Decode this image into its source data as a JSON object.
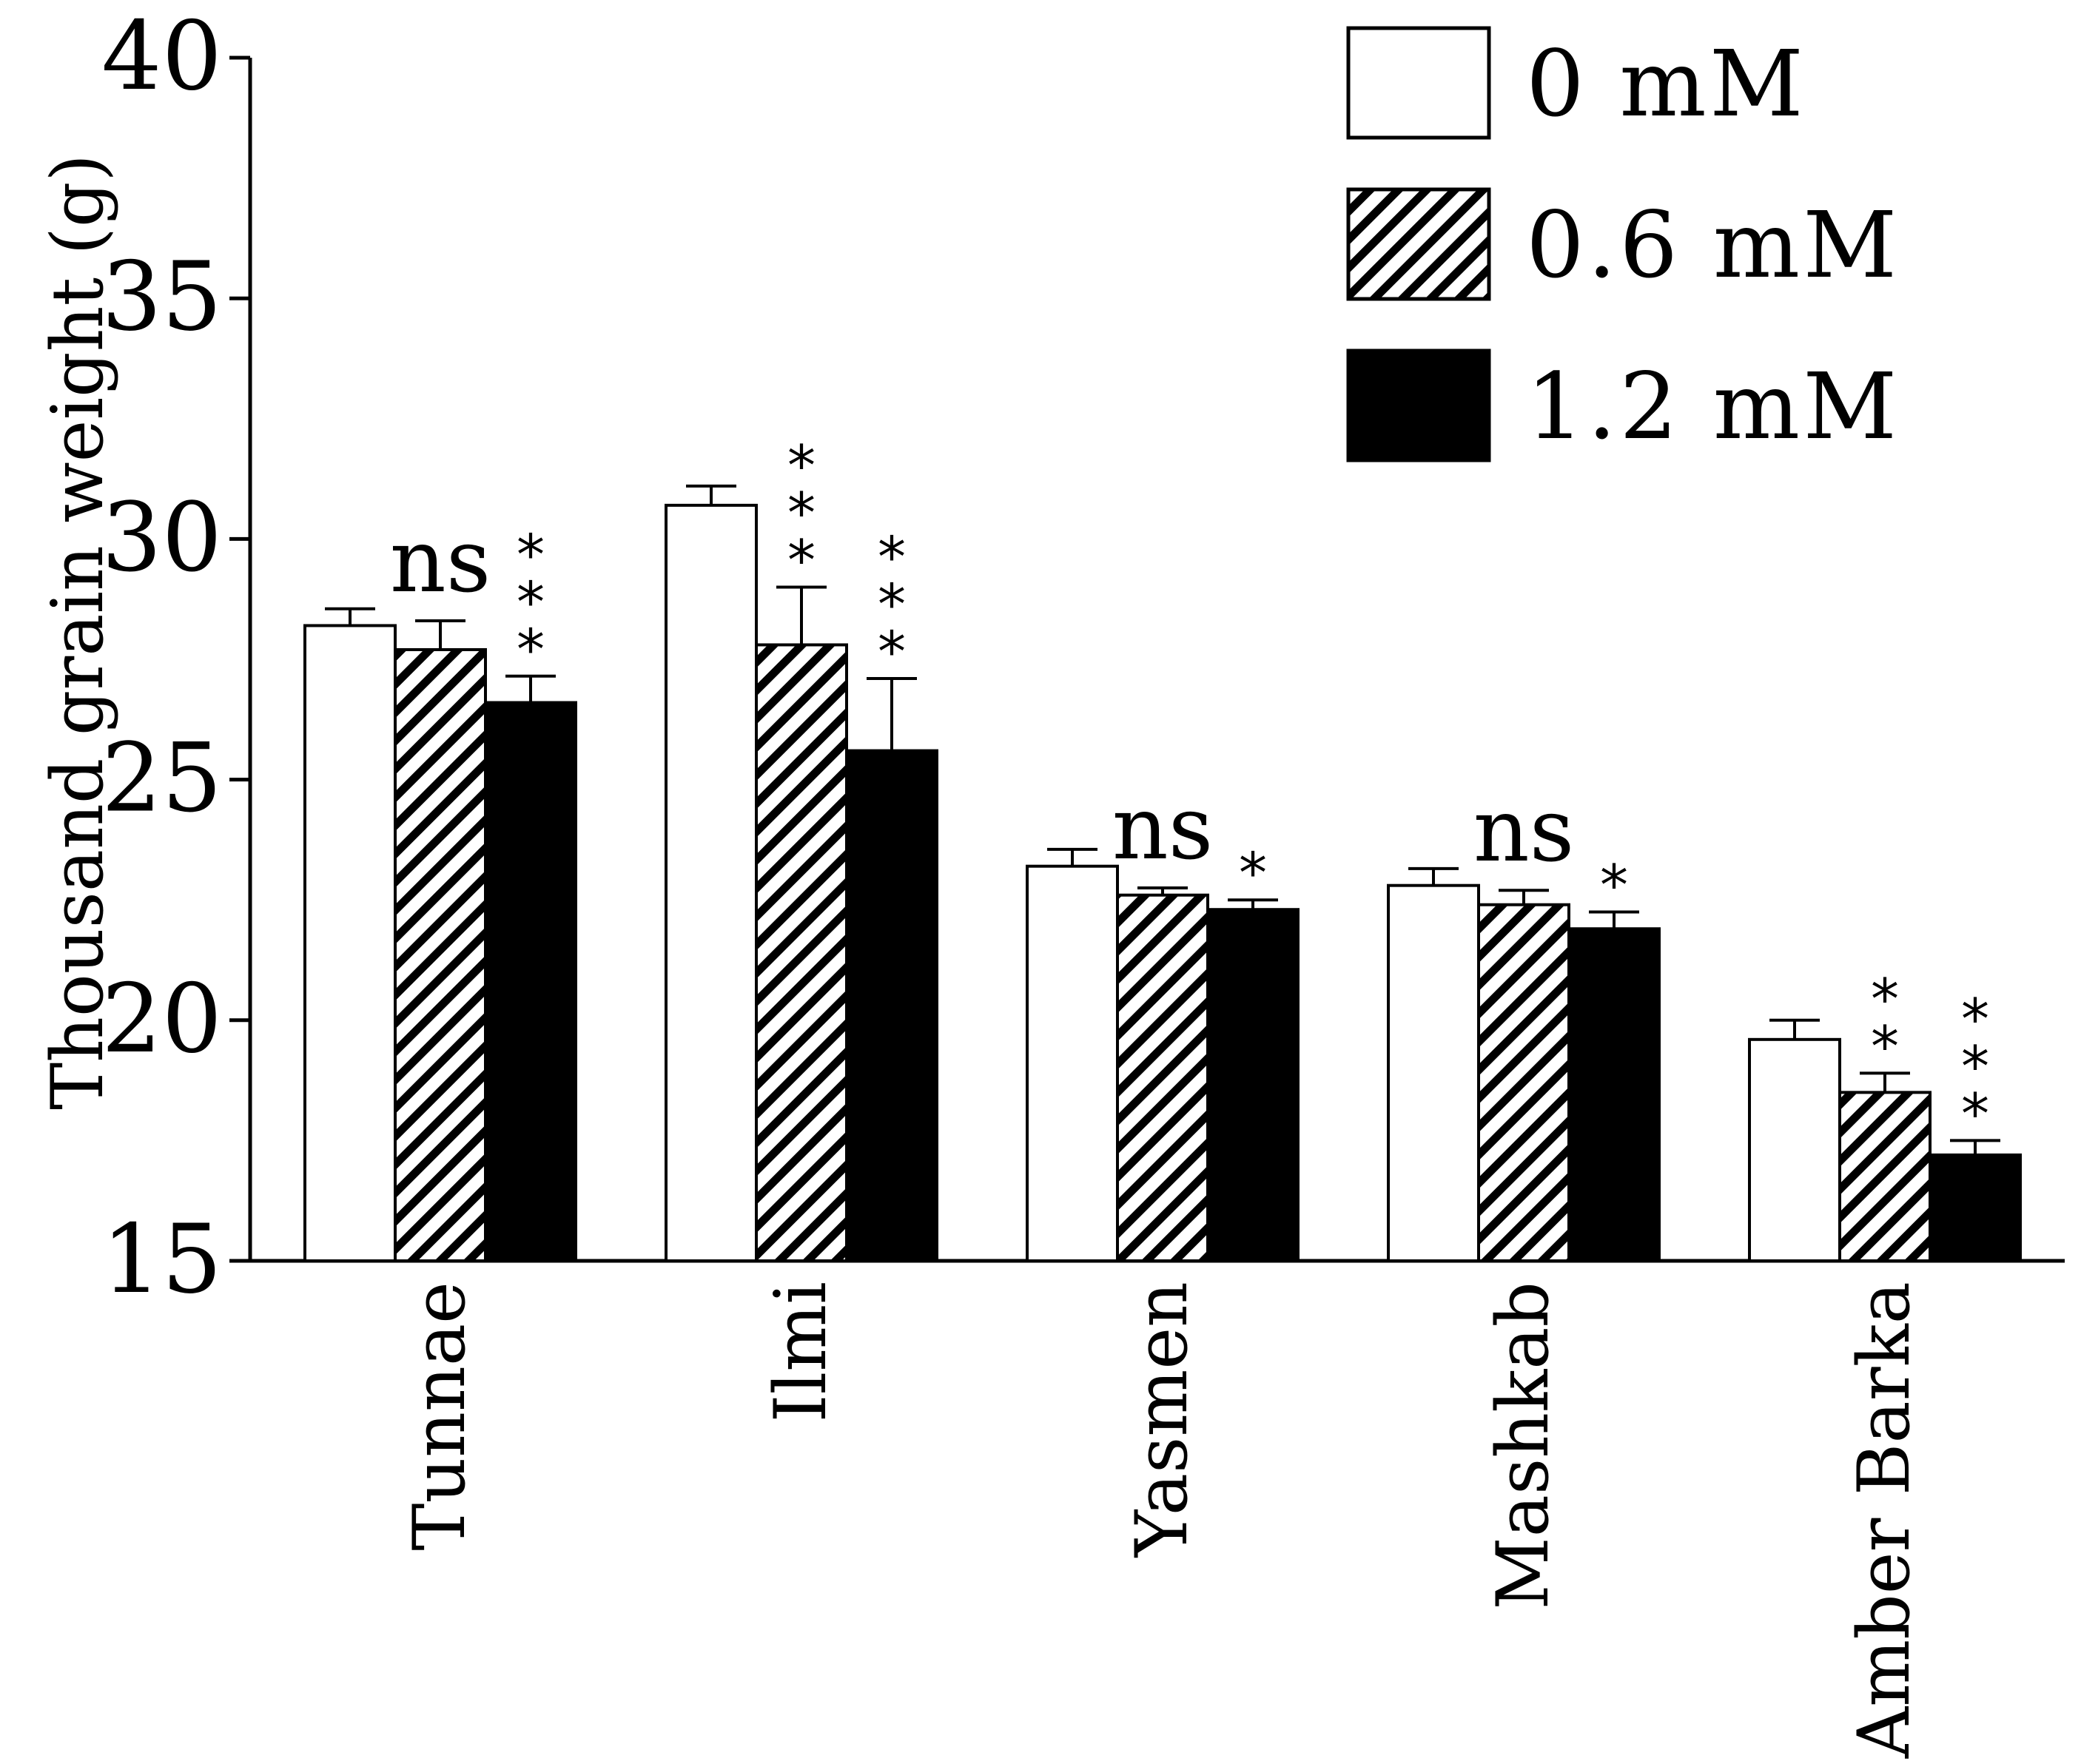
{
  "chart_data": {
    "type": "bar",
    "title": "",
    "xlabel": "",
    "ylabel": "Thousand grain weight (g)",
    "ylim": [
      15,
      40
    ],
    "yticks": [
      15,
      20,
      25,
      30,
      35,
      40
    ],
    "grid": false,
    "legend_position": "top-right",
    "categories": [
      "Tunnae",
      "Ilmi",
      "Yasmen",
      "Mashkab",
      "Amber Barka"
    ],
    "series": [
      {
        "name": "0 mM",
        "fill": "white",
        "values": [
          28.2,
          30.7,
          23.2,
          22.8,
          19.6
        ],
        "errors": [
          0.35,
          0.4,
          0.35,
          0.35,
          0.4
        ],
        "significance": [
          "",
          "",
          "",
          "",
          ""
        ]
      },
      {
        "name": "0.6 mM",
        "fill": "hatched",
        "values": [
          27.7,
          27.8,
          22.6,
          22.4,
          18.5
        ],
        "errors": [
          0.6,
          1.2,
          0.15,
          0.3,
          0.4
        ],
        "significance": [
          "ns",
          "***",
          "ns",
          "ns",
          "**"
        ]
      },
      {
        "name": "1.2 mM",
        "fill": "black",
        "values": [
          26.6,
          25.6,
          22.3,
          21.9,
          17.2
        ],
        "errors": [
          0.55,
          1.5,
          0.2,
          0.35,
          0.3
        ],
        "significance": [
          "***",
          "***",
          "*",
          "*",
          "***"
        ]
      }
    ]
  },
  "colors": {
    "ink": "#000000",
    "background": "#ffffff"
  }
}
